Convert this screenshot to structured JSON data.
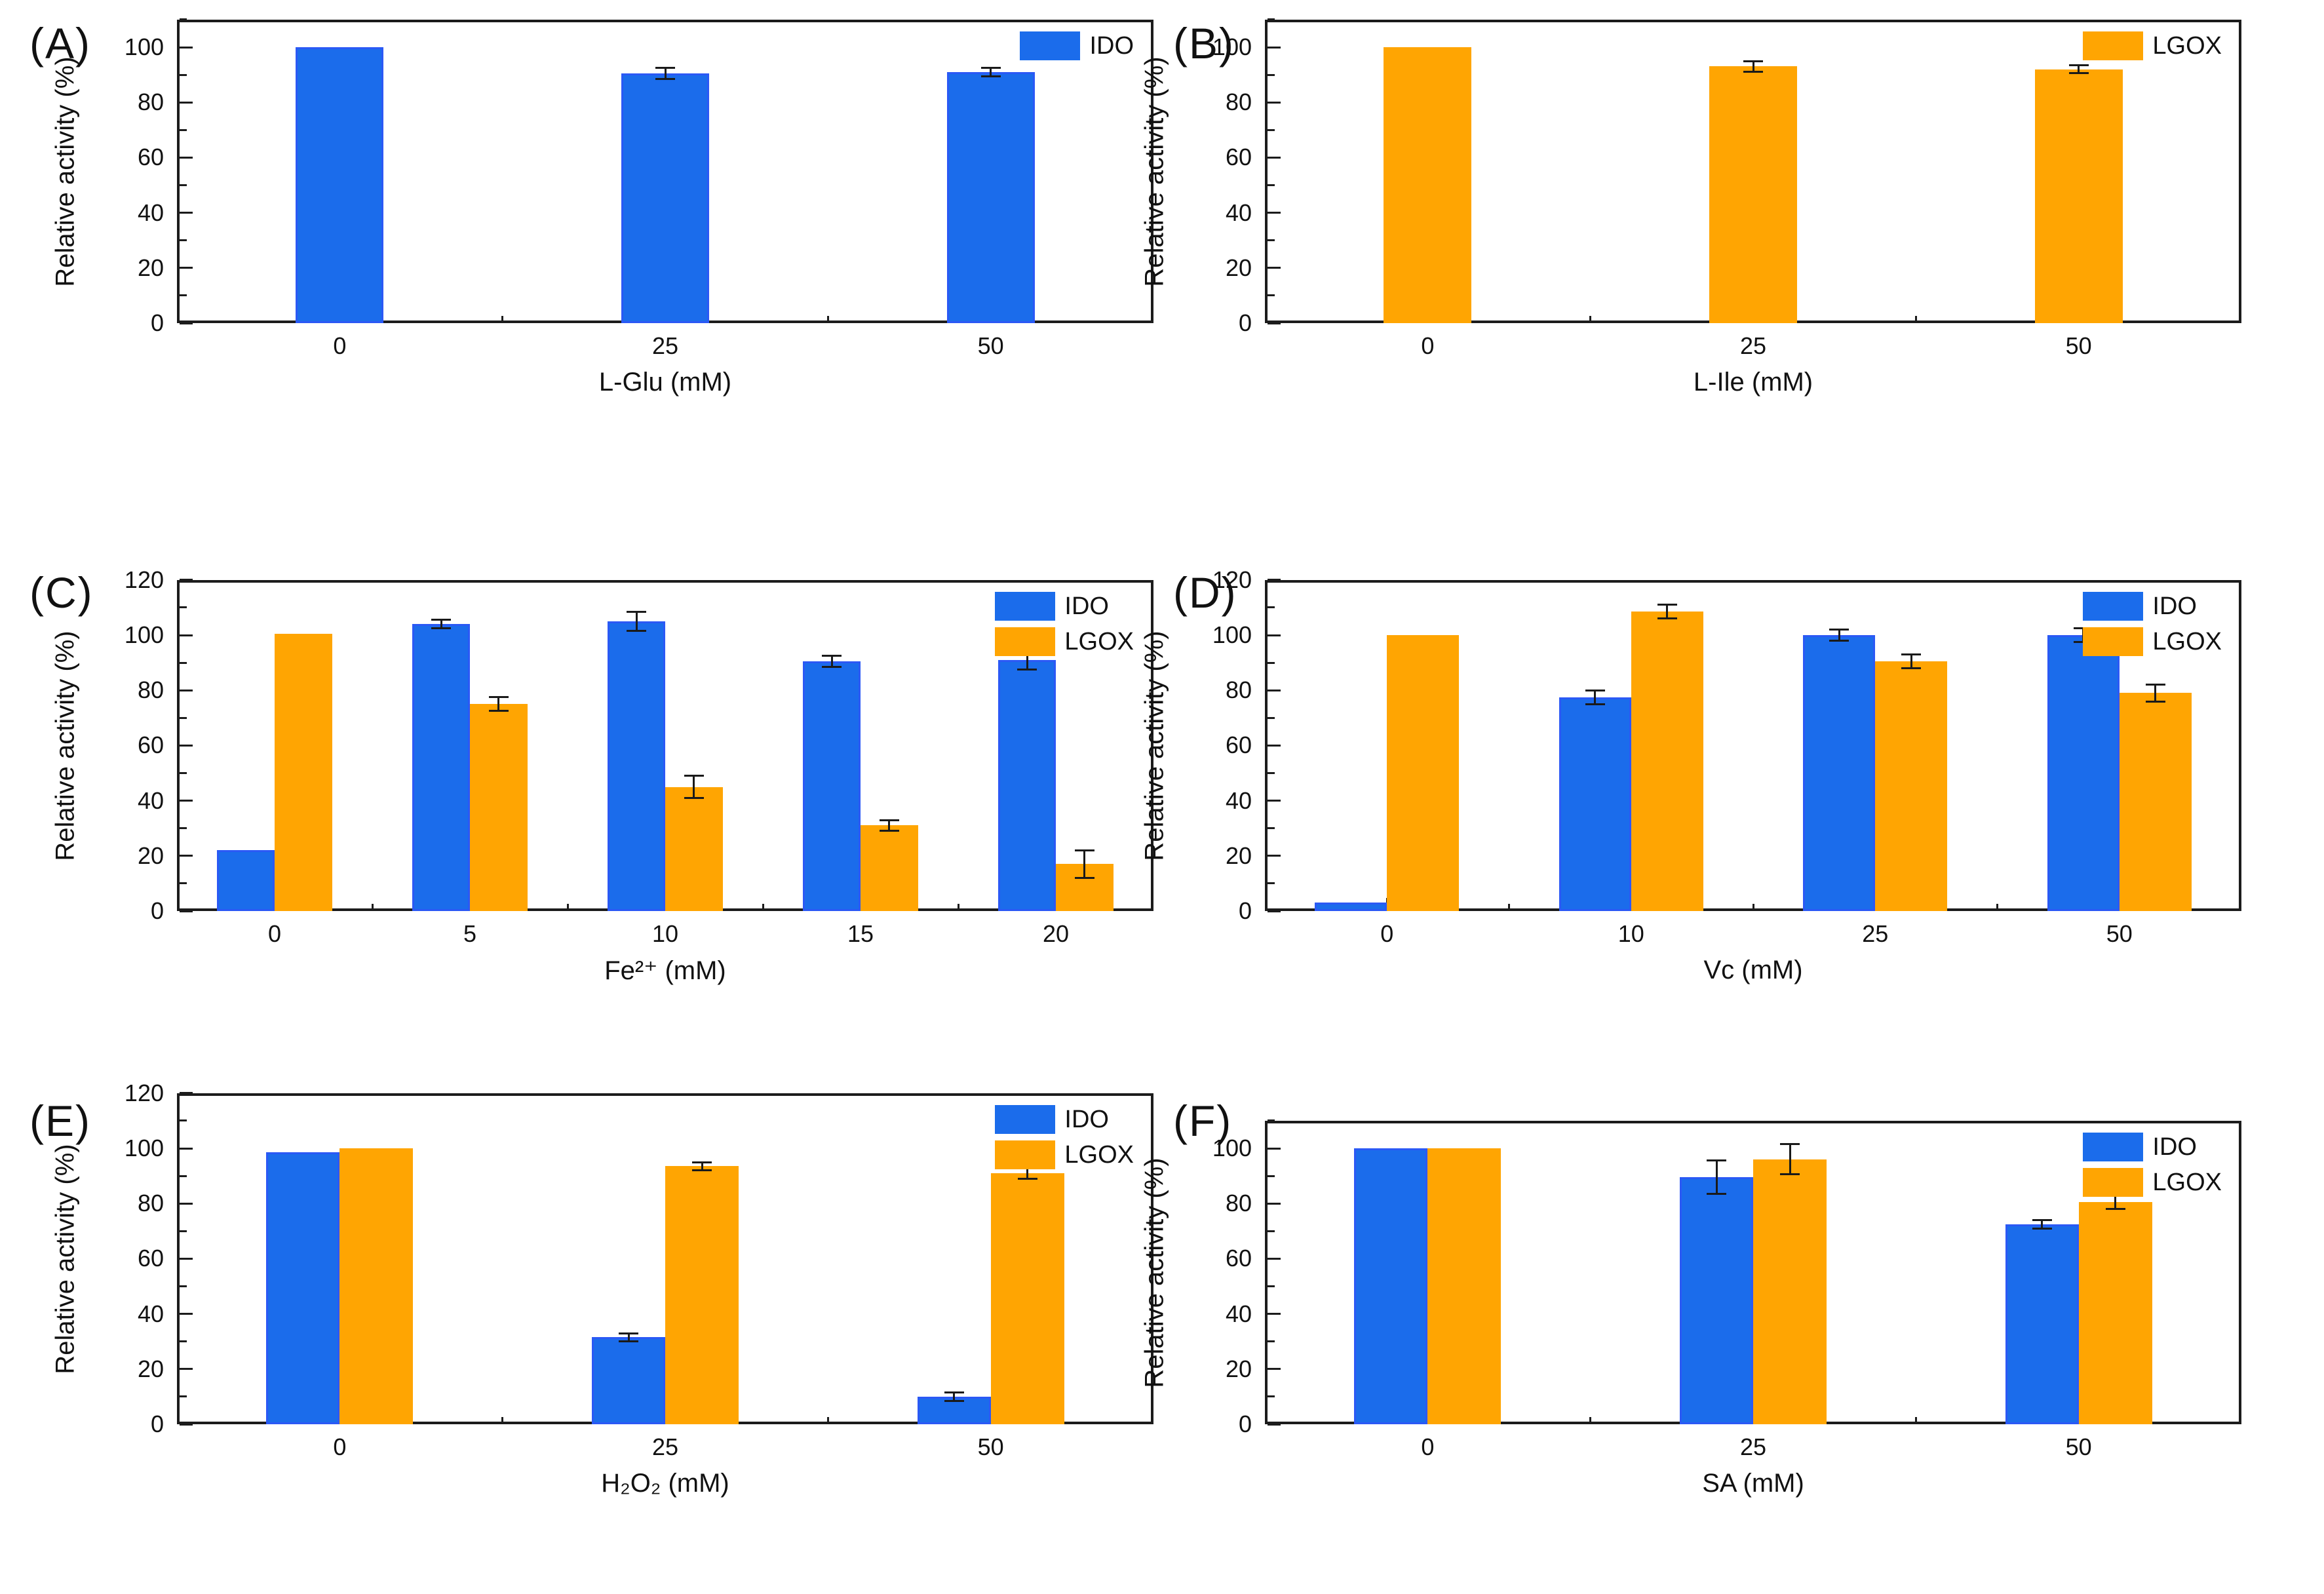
{
  "figure": {
    "background": "#ffffff",
    "y_axis_title": "Relative activity (%)",
    "colors": {
      "ido": "#1b6ceb",
      "ido_edge": "#2b59f5",
      "lgox": "#ffa502",
      "axis": "#1c1c1c",
      "error_bar": "#1a1a1a",
      "text": "#111111"
    }
  },
  "chart_data": [
    {
      "panel": "A",
      "panel_label": "(A)",
      "type": "bar",
      "xlabel": "L-Glu (mM)",
      "ylabel": "Relative activity (%)",
      "categories": [
        "0",
        "25",
        "50"
      ],
      "ylim": [
        0,
        110
      ],
      "ytick_step": 20,
      "yminor_step": 10,
      "ytick_labeled_max": 100,
      "grid": false,
      "legend_position": "top-right-inside",
      "series": [
        {
          "name": "IDO",
          "color": "#1b6ceb",
          "edge_color": "#2b59f5",
          "values": [
            100,
            90.5,
            91
          ],
          "errors": [
            0,
            2,
            1.5
          ]
        }
      ]
    },
    {
      "panel": "B",
      "panel_label": "(B)",
      "type": "bar",
      "xlabel": "L-Ile (mM)",
      "ylabel": "Relative activity (%)",
      "categories": [
        "0",
        "25",
        "50"
      ],
      "ylim": [
        0,
        110
      ],
      "ytick_step": 20,
      "yminor_step": 10,
      "ytick_labeled_max": 100,
      "grid": false,
      "legend_position": "top-right-inside",
      "series": [
        {
          "name": "LGOX",
          "color": "#ffa502",
          "edge_color": "#ffa502",
          "values": [
            100,
            93,
            92
          ],
          "errors": [
            0,
            2,
            1.5
          ]
        }
      ]
    },
    {
      "panel": "C",
      "panel_label": "(C)",
      "type": "bar",
      "xlabel": "Fe²⁺ (mM)",
      "ylabel": "Relative activity (%)",
      "categories": [
        "0",
        "5",
        "10",
        "15",
        "20"
      ],
      "ylim": [
        0,
        120
      ],
      "ytick_step": 20,
      "yminor_step": 10,
      "ytick_labeled_max": 120,
      "grid": false,
      "legend_position": "top-right-inside",
      "series": [
        {
          "name": "IDO",
          "color": "#1b6ceb",
          "edge_color": "#2b59f5",
          "values": [
            22,
            104,
            105,
            90.5,
            91
          ],
          "errors": [
            0,
            1.5,
            3.5,
            2,
            3.5
          ]
        },
        {
          "name": "LGOX",
          "color": "#ffa502",
          "edge_color": "#ffa502",
          "values": [
            100.5,
            75,
            45,
            31,
            17
          ],
          "errors": [
            0,
            2.5,
            4,
            2,
            5
          ]
        }
      ]
    },
    {
      "panel": "D",
      "panel_label": "(D)",
      "type": "bar",
      "xlabel": "Vc (mM)",
      "ylabel": "Relative activity (%)",
      "categories": [
        "0",
        "10",
        "25",
        "50"
      ],
      "ylim": [
        0,
        120
      ],
      "ytick_step": 20,
      "yminor_step": 10,
      "ytick_labeled_max": 120,
      "grid": false,
      "legend_position": "top-right-inside",
      "series": [
        {
          "name": "IDO",
          "color": "#1b6ceb",
          "edge_color": "#2b59f5",
          "values": [
            3,
            77.5,
            100,
            100
          ],
          "errors": [
            0,
            2.5,
            2,
            2.5
          ]
        },
        {
          "name": "LGOX",
          "color": "#ffa502",
          "edge_color": "#ffa502",
          "values": [
            100,
            108.5,
            90.5,
            79
          ],
          "errors": [
            0,
            2.5,
            2.5,
            3
          ]
        }
      ]
    },
    {
      "panel": "E",
      "panel_label": "(E)",
      "type": "bar",
      "xlabel": "H₂O₂ (mM)",
      "ylabel": "Relative activity (%)",
      "categories": [
        "0",
        "25",
        "50"
      ],
      "ylim": [
        0,
        120
      ],
      "ytick_step": 20,
      "yminor_step": 10,
      "ytick_labeled_max": 120,
      "grid": false,
      "legend_position": "top-right-inside",
      "series": [
        {
          "name": "IDO",
          "color": "#1b6ceb",
          "edge_color": "#2b59f5",
          "values": [
            98.5,
            31.5,
            10
          ],
          "errors": [
            0,
            1.5,
            1.5
          ]
        },
        {
          "name": "LGOX",
          "color": "#ffa502",
          "edge_color": "#ffa502",
          "values": [
            100,
            93.5,
            91
          ],
          "errors": [
            0,
            1.5,
            2
          ]
        }
      ]
    },
    {
      "panel": "F",
      "panel_label": "(F)",
      "type": "bar",
      "xlabel": "SA (mM)",
      "ylabel": "Relative activity (%)",
      "categories": [
        "0",
        "25",
        "50"
      ],
      "ylim": [
        0,
        110
      ],
      "ytick_step": 20,
      "yminor_step": 10,
      "ytick_labeled_max": 100,
      "grid": false,
      "legend_position": "top-right-inside",
      "series": [
        {
          "name": "IDO",
          "color": "#1b6ceb",
          "edge_color": "#2b59f5",
          "values": [
            100,
            89.5,
            72.5
          ],
          "errors": [
            0,
            6,
            1.5
          ]
        },
        {
          "name": "LGOX",
          "color": "#ffa502",
          "edge_color": "#ffa502",
          "values": [
            100,
            96,
            80.5
          ],
          "errors": [
            0,
            5.5,
            2.5
          ]
        }
      ]
    }
  ]
}
